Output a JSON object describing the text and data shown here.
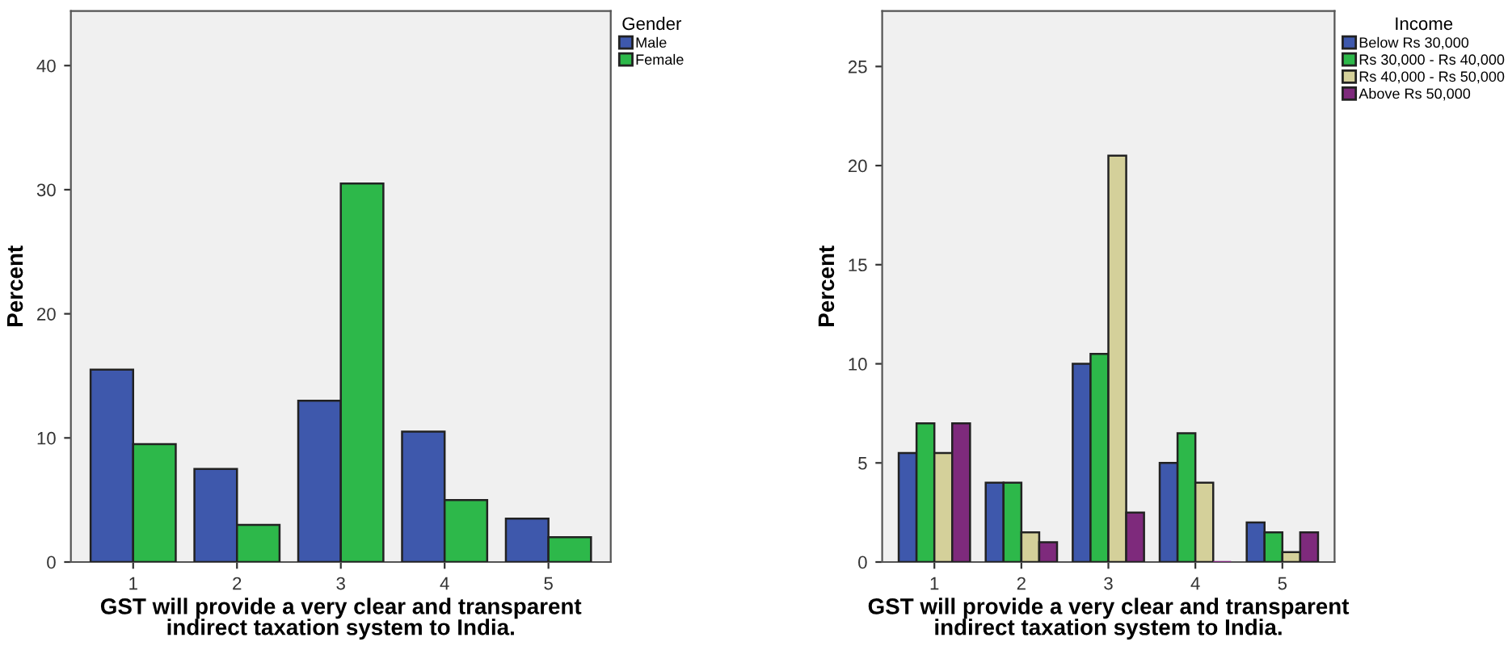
{
  "chart_data": [
    {
      "type": "bar",
      "categories": [
        "1",
        "2",
        "3",
        "4",
        "5"
      ],
      "xlabel": "GST will provide a very clear and transparent\nindirect taxation system to India.",
      "ylabel": "Percent",
      "legend_title": "Gender",
      "legend": "top right",
      "ylim": [
        0,
        44.4
      ],
      "yticks": [
        0,
        10,
        20,
        30,
        40
      ],
      "grid": false,
      "series": [
        {
          "name": "Male",
          "color": "#3e58ac",
          "values": [
            15.5,
            7.5,
            13,
            10.5,
            3.5
          ]
        },
        {
          "name": "Female",
          "color": "#2db84a",
          "values": [
            9.5,
            3,
            30.5,
            5,
            2
          ]
        }
      ]
    },
    {
      "type": "bar",
      "categories": [
        "1",
        "2",
        "3",
        "4",
        "5"
      ],
      "xlabel": "GST will provide a very clear and transparent\nindirect taxation system to India.",
      "ylabel": "Percent",
      "legend_title": "Income",
      "legend": "top right",
      "ylim": [
        0,
        27.8
      ],
      "yticks": [
        0,
        5,
        10,
        15,
        20,
        25
      ],
      "grid": false,
      "series": [
        {
          "name": "Below Rs 30,000",
          "color": "#3e58ac",
          "values": [
            5.5,
            4,
            10,
            5,
            2
          ]
        },
        {
          "name": "Rs 30,000 - Rs 40,000",
          "color": "#2db84a",
          "values": [
            7,
            4,
            10.5,
            6.5,
            1.5
          ]
        },
        {
          "name": "Rs 40,000 - Rs 50,000",
          "color": "#d4d09a",
          "values": [
            5.5,
            1.5,
            20.5,
            4,
            0.5
          ]
        },
        {
          "name": "Above Rs 50,000",
          "color": "#7e2a7c",
          "values": [
            7,
            1,
            2.5,
            0,
            1.5
          ]
        }
      ]
    }
  ]
}
